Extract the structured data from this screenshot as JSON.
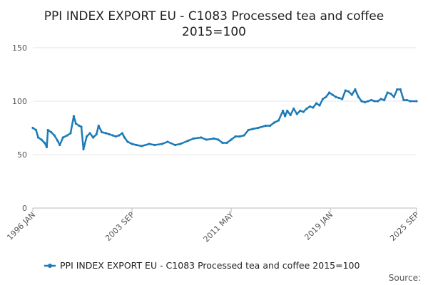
{
  "chart_data": {
    "type": "line",
    "title": "PPI INDEX EXPORT EU - C1083 Processed tea and coffee",
    "subtitle": "2015=100",
    "xlabel": "",
    "ylabel": "",
    "ylim": [
      0,
      150
    ],
    "y_ticks": [
      0,
      50,
      100,
      150
    ],
    "x_ticks": [
      "1996 JAN",
      "2003 SEP",
      "2011 MAY",
      "2019 JAN",
      "2025 SEP"
    ],
    "x_range": [
      "1996 JAN",
      "2025 SEP"
    ],
    "grid": "horizontal",
    "legend_position": "bottom",
    "series": [
      {
        "name": "PPI INDEX EXPORT EU - C1083 Processed tea and coffee 2015=100",
        "color": "#1c7ab8",
        "points": [
          [
            "1996 JAN",
            75
          ],
          [
            "1996 APR",
            73
          ],
          [
            "1996 JUN",
            66
          ],
          [
            "1996 SEP",
            64
          ],
          [
            "1996 DEC",
            61
          ],
          [
            "1997 FEB",
            57
          ],
          [
            "1997 MAR",
            73
          ],
          [
            "1997 JUN",
            71
          ],
          [
            "1997 SEP",
            68
          ],
          [
            "1997 DEC",
            63
          ],
          [
            "1998 FEB",
            59
          ],
          [
            "1998 MAY",
            66
          ],
          [
            "1998 SEP",
            68
          ],
          [
            "1998 DEC",
            70
          ],
          [
            "1999 MAR",
            86
          ],
          [
            "1999 MAY",
            79
          ],
          [
            "1999 AUG",
            77
          ],
          [
            "1999 OCT",
            76
          ],
          [
            "1999 DEC",
            55
          ],
          [
            "2000 MAR",
            67
          ],
          [
            "2000 JUN",
            70
          ],
          [
            "2000 SEP",
            66
          ],
          [
            "2000 DEC",
            69
          ],
          [
            "2001 FEB",
            77
          ],
          [
            "2001 MAY",
            71
          ],
          [
            "2001 SEP",
            70
          ],
          [
            "2001 DEC",
            69
          ],
          [
            "2002 MAR",
            68
          ],
          [
            "2002 JUN",
            67
          ],
          [
            "2002 SEP",
            68
          ],
          [
            "2002 DEC",
            70
          ],
          [
            "2003 FEB",
            66
          ],
          [
            "2003 MAY",
            62
          ],
          [
            "2003 SEP",
            60
          ],
          [
            "2004 JAN",
            59
          ],
          [
            "2004 JUN",
            58
          ],
          [
            "2005 JAN",
            60
          ],
          [
            "2005 JUN",
            59
          ],
          [
            "2006 JAN",
            60
          ],
          [
            "2006 JUN",
            62
          ],
          [
            "2007 JAN",
            59
          ],
          [
            "2007 JUN",
            60
          ],
          [
            "2008 JAN",
            63
          ],
          [
            "2008 JUN",
            65
          ],
          [
            "2009 JAN",
            66
          ],
          [
            "2009 JUN",
            64
          ],
          [
            "2010 JAN",
            65
          ],
          [
            "2010 MAY",
            64
          ],
          [
            "2010 SEP",
            61
          ],
          [
            "2011 JAN",
            61
          ],
          [
            "2011 MAY",
            64
          ],
          [
            "2011 SEP",
            67
          ],
          [
            "2012 JAN",
            67
          ],
          [
            "2012 MAY",
            68
          ],
          [
            "2012 SEP",
            73
          ],
          [
            "2013 JAN",
            74
          ],
          [
            "2013 JUN",
            75
          ],
          [
            "2014 JAN",
            77
          ],
          [
            "2014 MAY",
            77
          ],
          [
            "2014 SEP",
            80
          ],
          [
            "2015 JAN",
            82
          ],
          [
            "2015 MAY",
            91
          ],
          [
            "2015 JUL",
            86
          ],
          [
            "2015 SEP",
            91
          ],
          [
            "2015 DEC",
            87
          ],
          [
            "2016 MAR",
            93
          ],
          [
            "2016 JUN",
            88
          ],
          [
            "2016 SEP",
            91
          ],
          [
            "2016 DEC",
            90
          ],
          [
            "2017 MAR",
            93
          ],
          [
            "2017 JUN",
            95
          ],
          [
            "2017 SEP",
            94
          ],
          [
            "2017 DEC",
            98
          ],
          [
            "2018 MAR",
            96
          ],
          [
            "2018 JUN",
            102
          ],
          [
            "2018 SEP",
            104
          ],
          [
            "2018 DEC",
            108
          ],
          [
            "2019 MAR",
            106
          ],
          [
            "2019 JUN",
            104
          ],
          [
            "2019 SEP",
            103
          ],
          [
            "2019 DEC",
            102
          ],
          [
            "2020 MAR",
            110
          ],
          [
            "2020 JUN",
            109
          ],
          [
            "2020 SEP",
            106
          ],
          [
            "2020 DEC",
            111
          ],
          [
            "2021 MAR",
            104
          ],
          [
            "2021 JUN",
            100
          ],
          [
            "2021 SEP",
            99
          ],
          [
            "2021 DEC",
            100
          ],
          [
            "2022 MAR",
            101
          ],
          [
            "2022 JUN",
            100
          ],
          [
            "2022 SEP",
            100
          ],
          [
            "2022 DEC",
            102
          ],
          [
            "2023 MAR",
            101
          ],
          [
            "2023 JUN",
            108
          ],
          [
            "2023 SEP",
            107
          ],
          [
            "2023 DEC",
            104
          ],
          [
            "2024 MAR",
            111
          ],
          [
            "2024 JUN",
            111
          ],
          [
            "2024 SEP",
            101
          ],
          [
            "2024 DEC",
            101
          ],
          [
            "2025 MAR",
            100
          ],
          [
            "2025 SEP",
            100
          ]
        ]
      }
    ]
  },
  "legend": {
    "label": "PPI INDEX EXPORT EU - C1083 Processed tea and coffee 2015=100"
  },
  "source": {
    "label": "Source:"
  }
}
